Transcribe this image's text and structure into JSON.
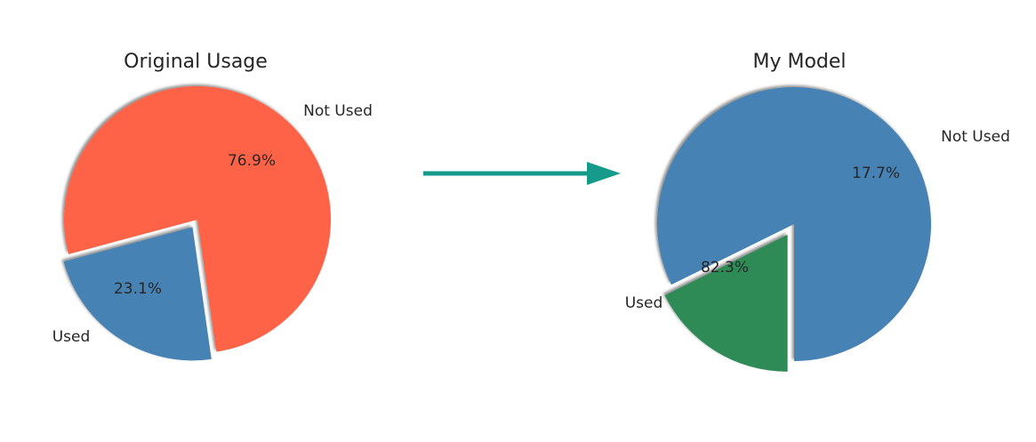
{
  "chart_data": [
    {
      "type": "pie",
      "title": "Original Usage",
      "categories": [
        "Used",
        "Not Used"
      ],
      "values": [
        23.1,
        76.9
      ],
      "labels": [
        "23.1%",
        "76.9%"
      ],
      "colors": [
        "#4682b4",
        "#ff6347"
      ],
      "exploded": [
        "Used"
      ],
      "shadow": true
    },
    {
      "type": "pie",
      "title": "My Model",
      "categories": [
        "Used",
        "Not Used"
      ],
      "values": [
        82.3,
        17.7
      ],
      "labels": [
        "82.3%",
        "17.7%"
      ],
      "colors": [
        "#4682b4",
        "#2e8b57"
      ],
      "exploded": [
        "Not Used"
      ],
      "shadow": true
    }
  ],
  "arrow": {
    "color": "#169b8a"
  }
}
